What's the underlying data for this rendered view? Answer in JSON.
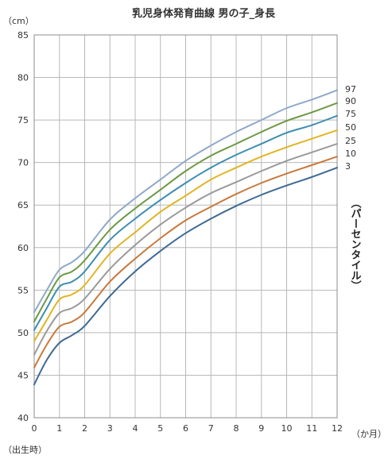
{
  "chart_data": {
    "type": "line",
    "title": "乳児身体発育曲線 男の子_身長",
    "y_unit": "（cm）",
    "x_unit": "（か月）",
    "x_start_note": "（出生時）",
    "side_label": "（パーセンタイル）",
    "xlim": [
      0,
      12
    ],
    "ylim": [
      40,
      85
    ],
    "grid": true,
    "x_ticks": [
      "0",
      "1",
      "2",
      "3",
      "4",
      "5",
      "6",
      "7",
      "8",
      "9",
      "10",
      "11",
      "12"
    ],
    "y_ticks": [
      "40",
      "45",
      "50",
      "55",
      "60",
      "65",
      "70",
      "75",
      "80",
      "85"
    ],
    "x": [
      0,
      0.5,
      1,
      1.5,
      2,
      3,
      4,
      5,
      6,
      7,
      8,
      9,
      10,
      11,
      12
    ],
    "series": [
      {
        "name": "97",
        "color": "#8fa9c9",
        "values": [
          52.4,
          55.0,
          57.4,
          58.3,
          59.6,
          63.3,
          65.8,
          68.0,
          70.2,
          72.0,
          73.6,
          75.0,
          76.4,
          77.4,
          78.5
        ]
      },
      {
        "name": "90",
        "color": "#6d9a45",
        "values": [
          51.3,
          54.0,
          56.5,
          57.2,
          58.5,
          62.1,
          64.6,
          66.8,
          69.0,
          70.8,
          72.2,
          73.6,
          74.9,
          75.9,
          77.0
        ]
      },
      {
        "name": "75",
        "color": "#3b8eb0",
        "values": [
          50.3,
          52.9,
          55.4,
          56.0,
          57.2,
          60.9,
          63.4,
          65.6,
          67.6,
          69.4,
          70.9,
          72.2,
          73.5,
          74.4,
          75.5
        ]
      },
      {
        "name": "50",
        "color": "#e0b524",
        "values": [
          49.0,
          51.5,
          53.9,
          54.5,
          55.6,
          59.3,
          61.8,
          64.2,
          66.1,
          68.0,
          69.4,
          70.7,
          71.8,
          72.8,
          73.8
        ]
      },
      {
        "name": "25",
        "color": "#9a9a9a",
        "values": [
          47.4,
          50.2,
          52.3,
          52.9,
          54.0,
          57.5,
          60.3,
          62.7,
          64.7,
          66.4,
          67.7,
          69.0,
          70.2,
          71.2,
          72.2
        ]
      },
      {
        "name": "10",
        "color": "#c87a3c",
        "values": [
          45.9,
          48.6,
          50.7,
          51.3,
          52.4,
          56.0,
          58.7,
          61.1,
          63.2,
          64.8,
          66.3,
          67.6,
          68.7,
          69.7,
          70.7
        ]
      },
      {
        "name": "3",
        "color": "#3e6a94",
        "values": [
          43.9,
          46.8,
          48.8,
          49.7,
          50.8,
          54.3,
          57.2,
          59.6,
          61.7,
          63.4,
          64.9,
          66.2,
          67.3,
          68.3,
          69.4
        ]
      }
    ]
  }
}
